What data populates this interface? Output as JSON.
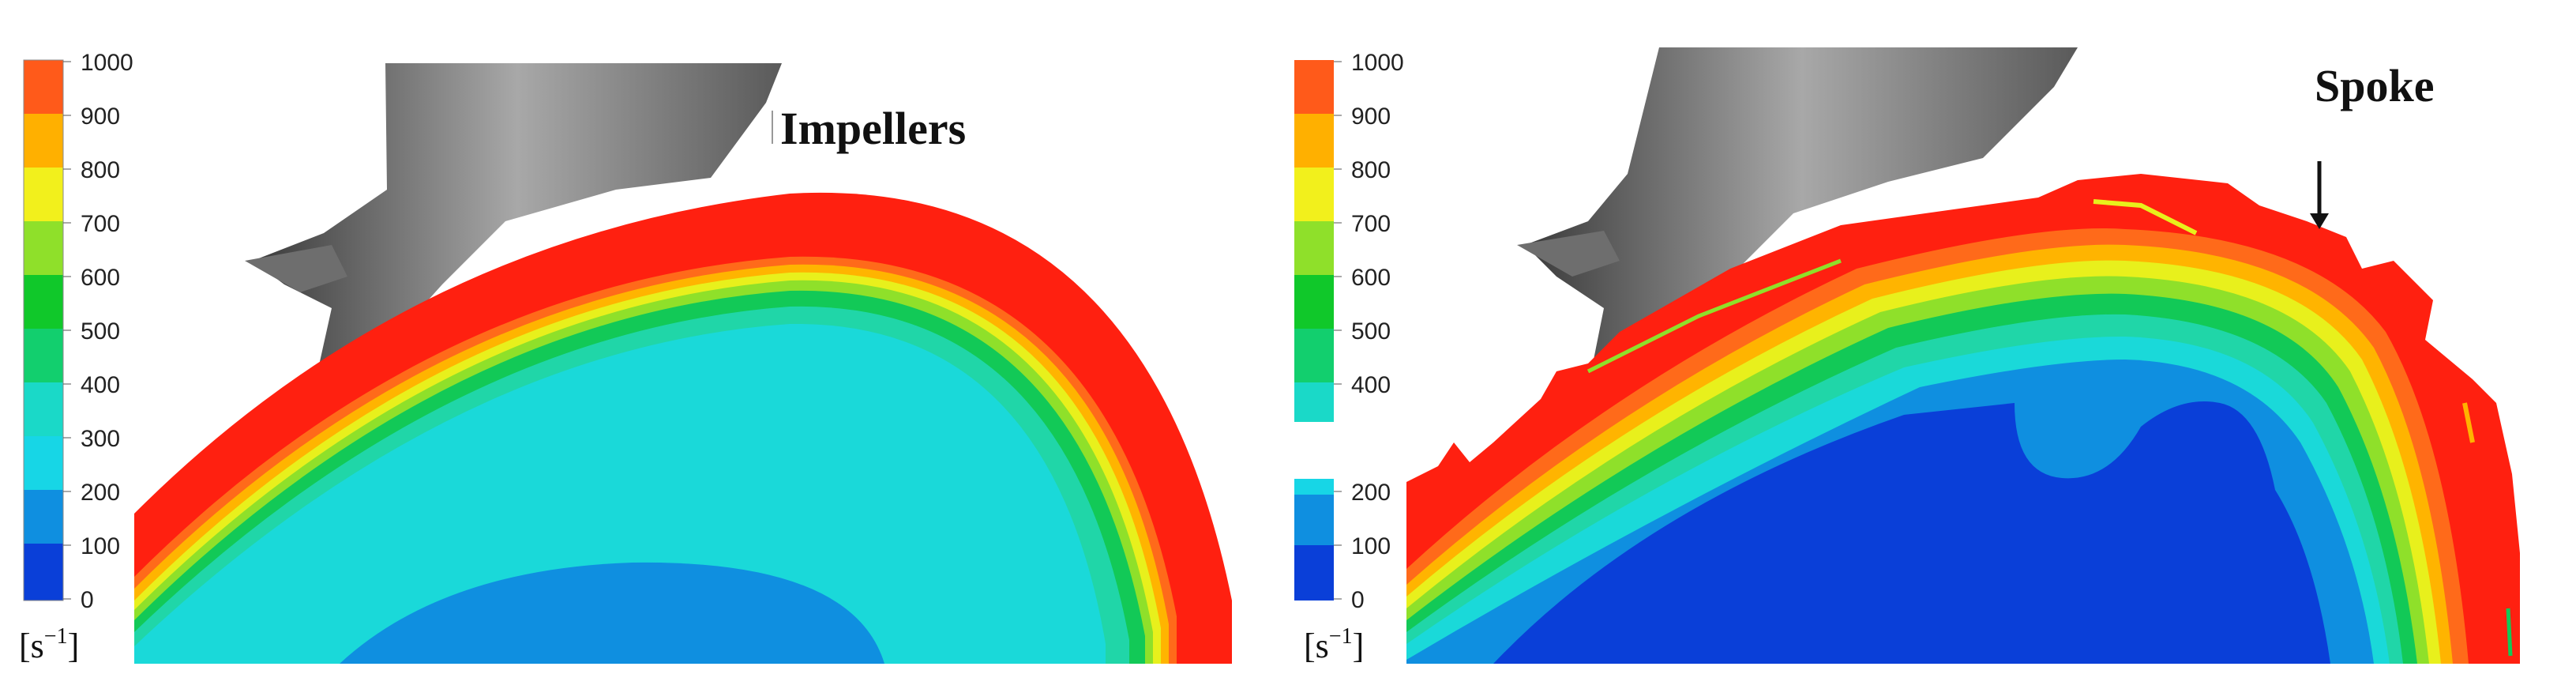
{
  "left_panel": {
    "colorbar": {
      "ticks": [
        "1000",
        "900",
        "800",
        "700",
        "600",
        "500",
        "400",
        "300",
        "200",
        "100",
        "0"
      ],
      "unit_base": "[s",
      "unit_exp": "−1",
      "unit_close": "]"
    },
    "annotation": "Impellers"
  },
  "right_panel": {
    "colorbar": {
      "ticks_upper": [
        "1000",
        "900",
        "800",
        "700",
        "600",
        "500",
        "400"
      ],
      "ticks_lower": [
        "200",
        "100",
        "0"
      ],
      "unit_base": "[s",
      "unit_exp": "−1",
      "unit_close": "]"
    },
    "annotation": "Spoke"
  },
  "colors": {
    "c0": "#0a3fd8",
    "c1": "#0f8fe0",
    "c2": "#15bfe6",
    "c3": "#1ad9d9",
    "c4": "#20d6a8",
    "c5": "#12c957",
    "c6": "#2fd32a",
    "c7": "#8fe02a",
    "c8": "#e8f01c",
    "c9": "#ffb400",
    "c10": "#ff6a1a",
    "c11": "#ff2010"
  }
}
